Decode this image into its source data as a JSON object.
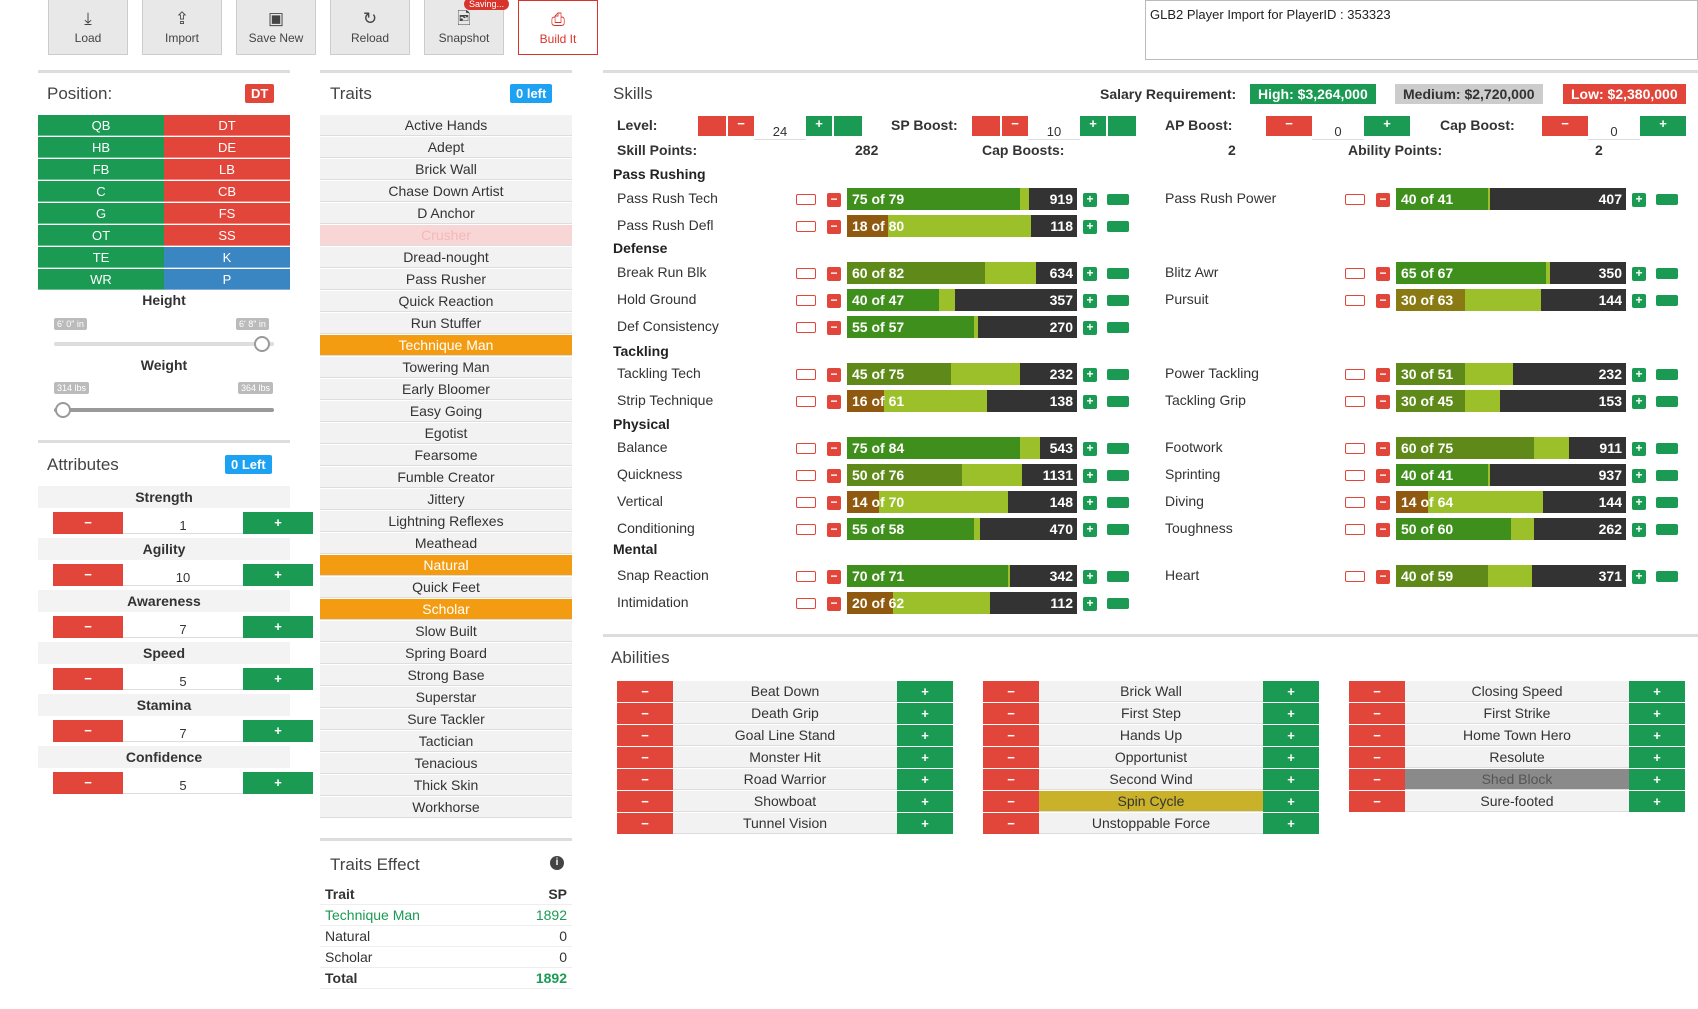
{
  "toolbar": {
    "load": "Load",
    "import": "Import",
    "save_new": "Save New",
    "reload": "Reload",
    "snapshot": "Snapshot",
    "saving": "Saving...",
    "build": "Build It"
  },
  "import_text": "GLB2 Player Import for PlayerID : 353323",
  "position": {
    "title": "Position:",
    "current": "DT",
    "left": [
      "QB",
      "HB",
      "FB",
      "C",
      "G",
      "OT",
      "TE",
      "WR"
    ],
    "right": [
      "DT",
      "DE",
      "LB",
      "CB",
      "FS",
      "SS",
      "K",
      "P"
    ]
  },
  "height": {
    "label": "Height",
    "min": "6' 0\" in",
    "max": "6' 8\" in"
  },
  "weight": {
    "label": "Weight",
    "min": "314 lbs",
    "max": "364 lbs"
  },
  "attributes": {
    "title": "Attributes",
    "left": "0 Left",
    "items": [
      {
        "name": "Strength",
        "value": "1"
      },
      {
        "name": "Agility",
        "value": "10"
      },
      {
        "name": "Awareness",
        "value": "7"
      },
      {
        "name": "Speed",
        "value": "5"
      },
      {
        "name": "Stamina",
        "value": "7"
      },
      {
        "name": "Confidence",
        "value": "5"
      }
    ]
  },
  "traits": {
    "title": "Traits",
    "left": "0 left",
    "items": [
      "Active Hands",
      "Adept",
      "Brick Wall",
      "Chase Down Artist",
      "D Anchor",
      "Crusher",
      "Dread-nought",
      "Pass Rusher",
      "Quick Reaction",
      "Run Stuffer",
      "Technique Man",
      "Towering Man",
      "Early Bloomer",
      "Easy Going",
      "Egotist",
      "Fearsome",
      "Fumble Creator",
      "Jittery",
      "Lightning Reflexes",
      "Meathead",
      "Natural",
      "Quick Feet",
      "Scholar",
      "Slow Built",
      "Spring Board",
      "Strong Base",
      "Superstar",
      "Sure Tackler",
      "Tactician",
      "Tenacious",
      "Thick Skin",
      "Workhorse"
    ]
  },
  "traits_effect": {
    "title": "Traits Effect",
    "col1": "Trait",
    "col2": "SP",
    "rows": [
      {
        "t": "Technique Man",
        "v": "1892"
      },
      {
        "t": "Natural",
        "v": "0"
      },
      {
        "t": "Scholar",
        "v": "0"
      }
    ],
    "total_label": "Total",
    "total": "1892"
  },
  "skills": {
    "title": "Skills",
    "salary_label": "Salary Requirement:",
    "high": "High: $3,264,000",
    "medium": "Medium: $2,720,000",
    "low": "Low: $2,380,000",
    "level_label": "Level:",
    "level": "24",
    "sp_boost_label": "SP Boost:",
    "sp_boost": "10",
    "ap_boost_label": "AP Boost:",
    "ap_boost": "0",
    "cap_boost_label": "Cap Boost:",
    "cap_boost": "0",
    "skill_points_label": "Skill Points:",
    "skill_points": "282",
    "cap_boosts_label": "Cap Boosts:",
    "cap_boosts": "2",
    "ability_points_label": "Ability Points:",
    "ability_points": "2",
    "sections": [
      "Pass Rushing",
      "Defense",
      "Tackling",
      "Physical",
      "Mental"
    ],
    "rows": [
      {
        "name": "Pass Rush Tech",
        "bar": "75 of 79",
        "val": "919"
      },
      {
        "name": "Pass Rush Power",
        "bar": "40 of 41",
        "val": "407"
      },
      {
        "name": "Pass Rush Defl",
        "bar": "18 of 80",
        "val": "118"
      },
      {
        "name": "Break Run Blk",
        "bar": "60 of 82",
        "val": "634"
      },
      {
        "name": "Blitz Awr",
        "bar": "65 of 67",
        "val": "350"
      },
      {
        "name": "Hold Ground",
        "bar": "40 of 47",
        "val": "357"
      },
      {
        "name": "Pursuit",
        "bar": "30 of 63",
        "val": "144"
      },
      {
        "name": "Def Consistency",
        "bar": "55 of 57",
        "val": "270"
      },
      {
        "name": "Tackling Tech",
        "bar": "45 of 75",
        "val": "232"
      },
      {
        "name": "Power Tackling",
        "bar": "30 of 51",
        "val": "232"
      },
      {
        "name": "Strip Technique",
        "bar": "16 of 61",
        "val": "138"
      },
      {
        "name": "Tackling Grip",
        "bar": "30 of 45",
        "val": "153"
      },
      {
        "name": "Balance",
        "bar": "75 of 84",
        "val": "543"
      },
      {
        "name": "Footwork",
        "bar": "60 of 75",
        "val": "911"
      },
      {
        "name": "Quickness",
        "bar": "50 of 76",
        "val": "1131"
      },
      {
        "name": "Sprinting",
        "bar": "40 of 41",
        "val": "937"
      },
      {
        "name": "Vertical",
        "bar": "14 of 70",
        "val": "148"
      },
      {
        "name": "Diving",
        "bar": "14 of 64",
        "val": "144"
      },
      {
        "name": "Conditioning",
        "bar": "55 of 58",
        "val": "470"
      },
      {
        "name": "Toughness",
        "bar": "50 of 60",
        "val": "262"
      },
      {
        "name": "Snap Reaction",
        "bar": "70 of 71",
        "val": "342"
      },
      {
        "name": "Heart",
        "bar": "40 of 59",
        "val": "371"
      },
      {
        "name": "Intimidation",
        "bar": "20 of 62",
        "val": "112"
      }
    ]
  },
  "abilities": {
    "title": "Abilities",
    "col1": [
      "Beat Down",
      "Death Grip",
      "Goal Line Stand",
      "Monster Hit",
      "Road Warrior",
      "Showboat",
      "Tunnel Vision"
    ],
    "col2": [
      "Brick Wall",
      "First Step",
      "Hands Up",
      "Opportunist",
      "Second Wind",
      "Spin Cycle",
      "Unstoppable Force"
    ],
    "col3": [
      "Closing Speed",
      "First Strike",
      "Home Town Hero",
      "Resolute",
      "Shed Block",
      "Sure-footed"
    ]
  },
  "colors": {
    "green": "#1a9a52",
    "red": "#e2453a",
    "blue": "#3a86c2",
    "orange": "#f39c12"
  }
}
